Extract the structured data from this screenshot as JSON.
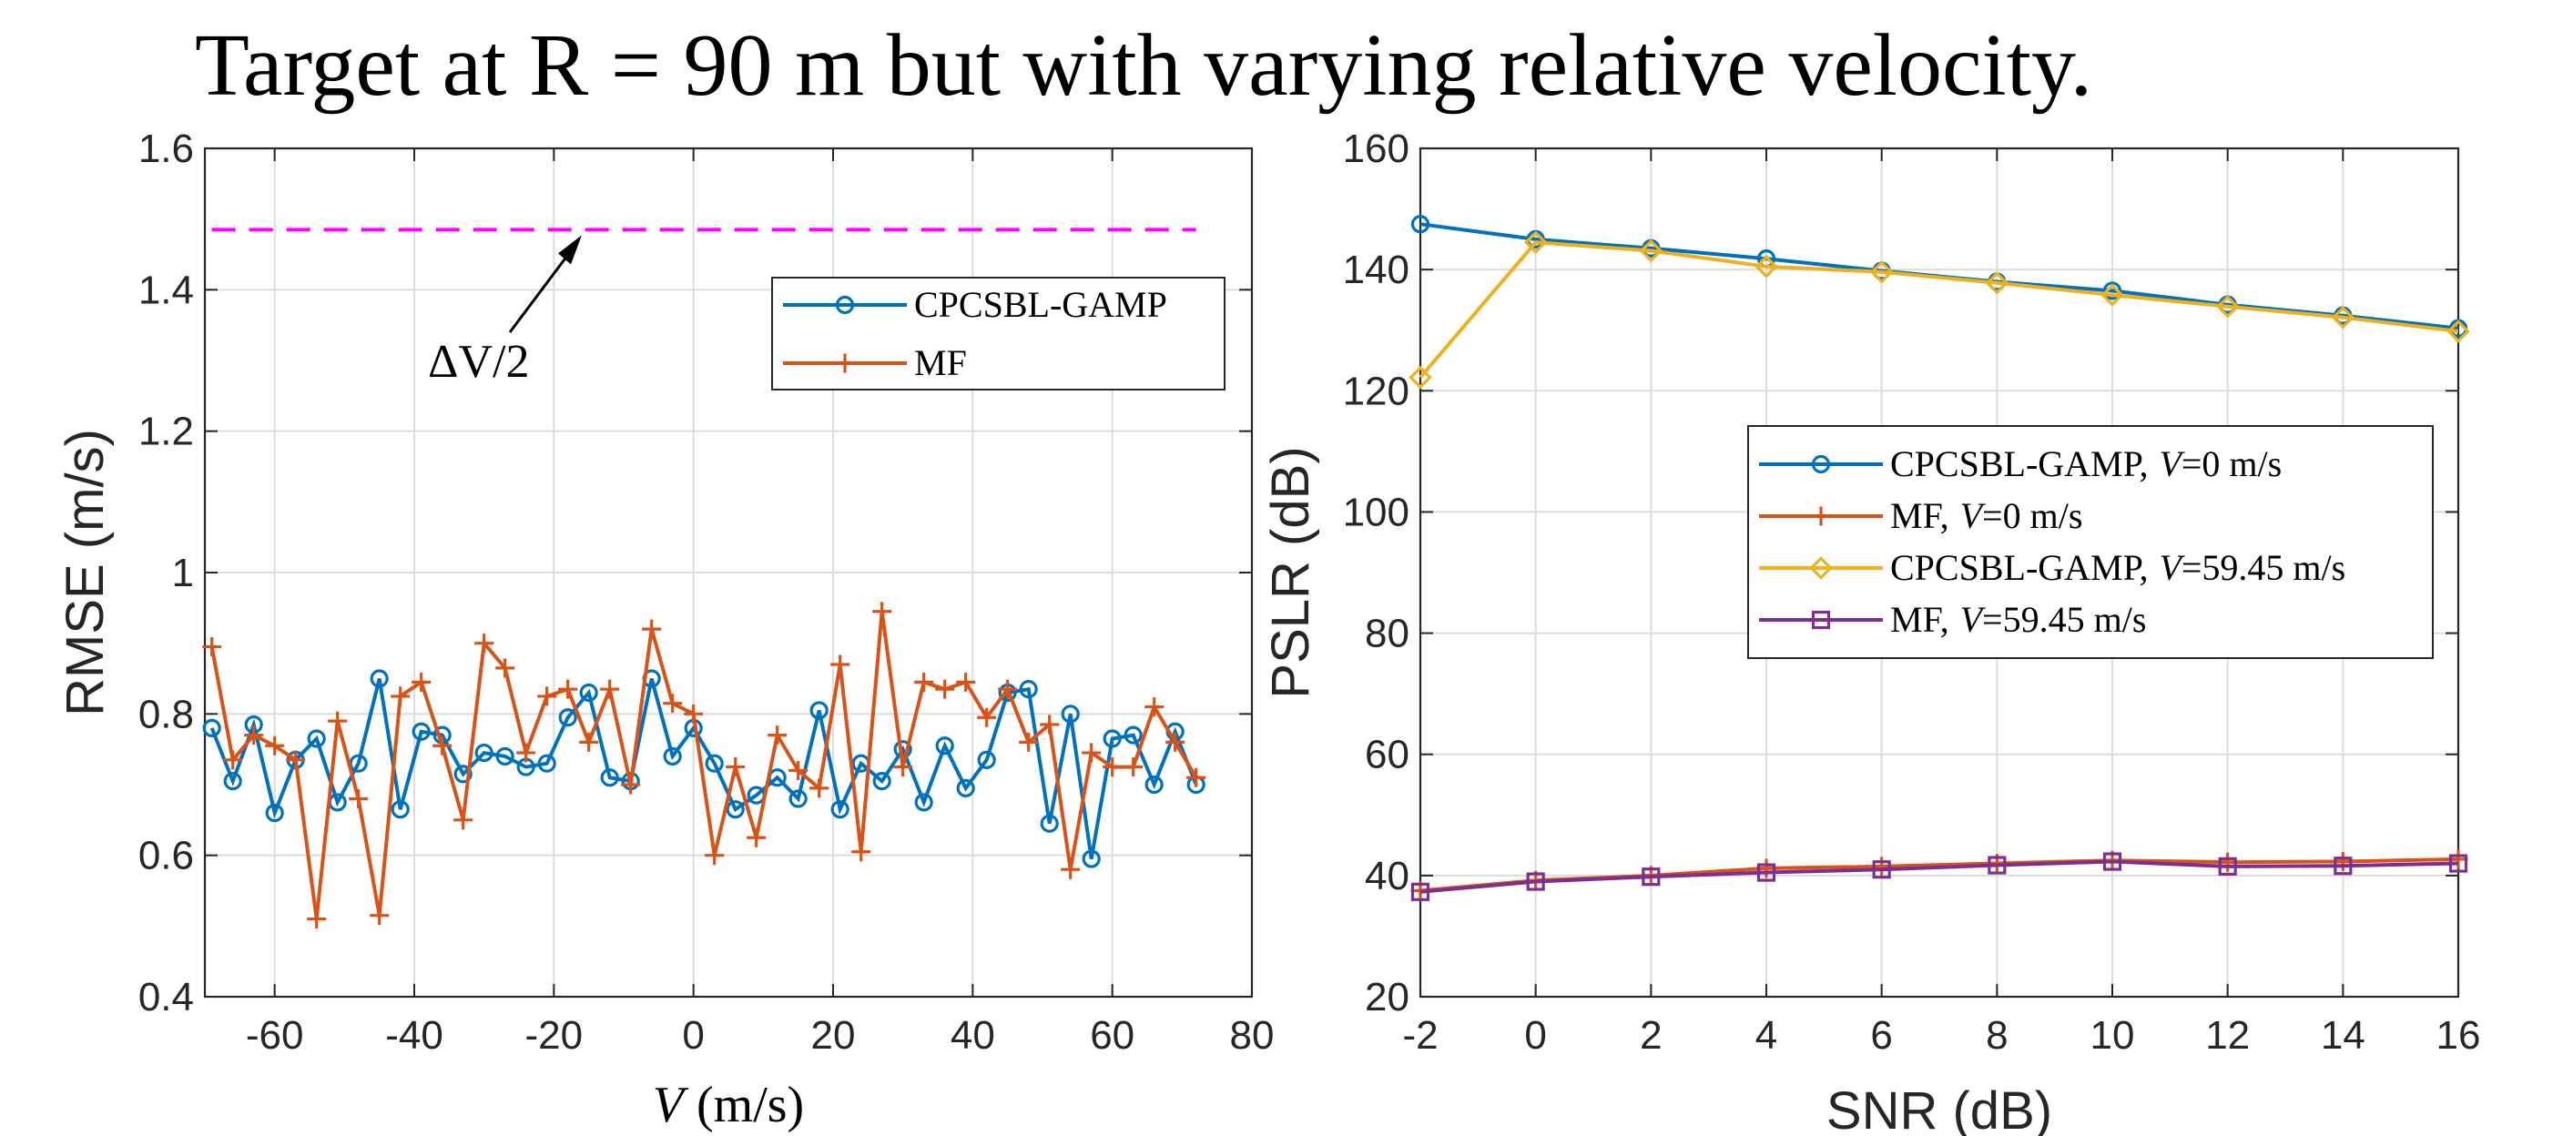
{
  "title": "Target at R = 90 m but with varying relative velocity.",
  "chart_data": [
    {
      "type": "line",
      "xlabel_var": "V",
      "xlabel_unit": " (m/s)",
      "ylabel": "RMSE (m/s)",
      "xlim": [
        -70,
        80
      ],
      "ylim": [
        0.4,
        1.6
      ],
      "xticks": [
        "-60",
        "-40",
        "-20",
        "0",
        "20",
        "40",
        "60",
        "80"
      ],
      "yticks": [
        "0.4",
        "0.6",
        "0.8",
        "1",
        "1.2",
        "1.4",
        "1.6"
      ],
      "grid": true,
      "legend_position": "top-right",
      "reference_line": {
        "y": 1.485,
        "x_range": [
          -69,
          72
        ],
        "color": "#ff00ff",
        "style": "dashed"
      },
      "annotation": {
        "text": "ΔV/2",
        "arrow_to": [
          -16,
          1.485
        ]
      },
      "series": [
        {
          "name": "CPCSBL-GAMP",
          "color": "#0072bd",
          "marker": "circle",
          "x": [
            -69,
            -66,
            -63,
            -60,
            -57,
            -54,
            -51,
            -48,
            -45,
            -42,
            -39,
            -36,
            -33,
            -30,
            -27,
            -24,
            -21,
            -18,
            -15,
            -12,
            -9,
            -6,
            -3,
            0,
            3,
            6,
            9,
            12,
            15,
            18,
            21,
            24,
            27,
            30,
            33,
            36,
            39,
            42,
            45,
            48,
            51,
            54,
            57,
            60,
            63,
            66,
            69,
            72
          ],
          "y": [
            0.78,
            0.705,
            0.785,
            0.66,
            0.735,
            0.765,
            0.675,
            0.73,
            0.85,
            0.665,
            0.775,
            0.77,
            0.715,
            0.745,
            0.74,
            0.725,
            0.73,
            0.795,
            0.83,
            0.71,
            0.705,
            0.85,
            0.74,
            0.78,
            0.73,
            0.665,
            0.685,
            0.71,
            0.68,
            0.805,
            0.665,
            0.73,
            0.705,
            0.75,
            0.675,
            0.755,
            0.695,
            0.735,
            0.83,
            0.835,
            0.645,
            0.8,
            0.595,
            0.765,
            0.77,
            0.7,
            0.775,
            0.7
          ]
        },
        {
          "name": "MF",
          "color": "#d95319",
          "marker": "plus",
          "x": [
            -69,
            -66,
            -63,
            -60,
            -57,
            -54,
            -51,
            -48,
            -45,
            -42,
            -39,
            -36,
            -33,
            -30,
            -27,
            -24,
            -21,
            -18,
            -15,
            -12,
            -9,
            -6,
            -3,
            0,
            3,
            6,
            9,
            12,
            15,
            18,
            21,
            24,
            27,
            30,
            33,
            36,
            39,
            42,
            45,
            48,
            51,
            54,
            57,
            60,
            63,
            66,
            69,
            72
          ],
          "y": [
            0.895,
            0.735,
            0.77,
            0.755,
            0.735,
            0.51,
            0.79,
            0.68,
            0.515,
            0.825,
            0.845,
            0.755,
            0.65,
            0.9,
            0.865,
            0.745,
            0.825,
            0.835,
            0.76,
            0.835,
            0.7,
            0.92,
            0.815,
            0.8,
            0.6,
            0.725,
            0.625,
            0.77,
            0.72,
            0.695,
            0.87,
            0.605,
            0.945,
            0.725,
            0.845,
            0.835,
            0.845,
            0.795,
            0.835,
            0.76,
            0.785,
            0.58,
            0.745,
            0.725,
            0.725,
            0.81,
            0.76,
            0.71
          ]
        }
      ]
    },
    {
      "type": "line",
      "xlabel": "SNR (dB)",
      "ylabel": "PSLR (dB)",
      "xlim": [
        -2,
        16
      ],
      "ylim": [
        20,
        160
      ],
      "xticks": [
        "-2",
        "0",
        "2",
        "4",
        "6",
        "8",
        "10",
        "12",
        "14",
        "16"
      ],
      "yticks": [
        "20",
        "40",
        "60",
        "80",
        "100",
        "120",
        "140",
        "160"
      ],
      "grid": true,
      "legend_position": "center-right",
      "x": [
        -2,
        0,
        2,
        4,
        6,
        8,
        10,
        12,
        14,
        16
      ],
      "series": [
        {
          "name": "CPCSBL-GAMP,",
          "velocity": "V=0 m/s",
          "color": "#0072bd",
          "marker": "circle",
          "values": [
            147.5,
            145,
            143.5,
            141.8,
            139.8,
            138,
            136.5,
            134.2,
            132.4,
            130.3
          ]
        },
        {
          "name": "MF,",
          "velocity": "V=0 m/s",
          "color": "#d95319",
          "marker": "plus",
          "values": [
            37.5,
            39.2,
            40,
            41.2,
            41.5,
            42,
            42.5,
            42.2,
            42.3,
            42.7
          ]
        },
        {
          "name": "CPCSBL-GAMP,",
          "velocity": "V=59.45 m/s",
          "color": "#edb120",
          "marker": "diamond",
          "values": [
            122.2,
            144.5,
            143.1,
            140.5,
            139.6,
            137.8,
            135.8,
            133.9,
            132.1,
            129.8
          ]
        },
        {
          "name": "MF,",
          "velocity": "V=59.45 m/s",
          "color": "#7e2f8e",
          "marker": "square",
          "values": [
            37.3,
            39,
            39.8,
            40.5,
            41,
            41.7,
            42.3,
            41.5,
            41.6,
            42
          ]
        }
      ]
    }
  ]
}
